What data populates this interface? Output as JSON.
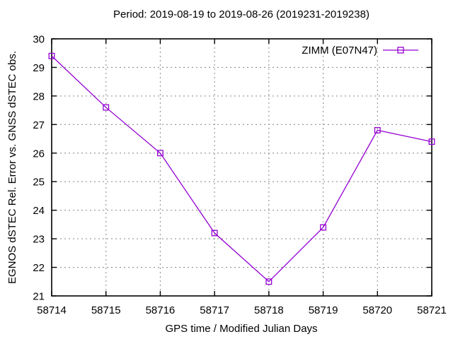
{
  "title": "Period: 2019-08-19 to 2019-08-26 (2019231-2019238)",
  "colors": {
    "background": "#ffffff",
    "plot_border": "#000000",
    "grid": "#909090",
    "text": "#000000",
    "series_magenta": "#9400d3"
  },
  "chart_data": {
    "type": "line",
    "title": "Period: 2019-08-19 to 2019-08-26 (2019231-2019238)",
    "xlabel": "GPS time / Modified Julian Days",
    "ylabel": "EGNOS dSTEC Rel. Error vs. GNSS dSTEC obs.",
    "x": [
      58714,
      58715,
      58716,
      58717,
      58718,
      58719,
      58720,
      58721
    ],
    "series": [
      {
        "name": "ZIMM (E07N47)",
        "values": [
          29.4,
          27.6,
          26.0,
          23.2,
          21.5,
          23.4,
          26.8,
          26.4
        ],
        "color": "#9400d3",
        "marker": "open-square"
      }
    ],
    "xlim": [
      58714,
      58721
    ],
    "ylim": [
      21,
      30
    ],
    "xticks": [
      58714,
      58715,
      58716,
      58717,
      58718,
      58719,
      58720,
      58721
    ],
    "yticks": [
      21,
      22,
      23,
      24,
      25,
      26,
      27,
      28,
      29,
      30
    ],
    "grid": true,
    "grid_style": "dashed",
    "legend_position": "top-right-inside",
    "legend_entries": [
      "ZIMM (E07N47)"
    ]
  }
}
